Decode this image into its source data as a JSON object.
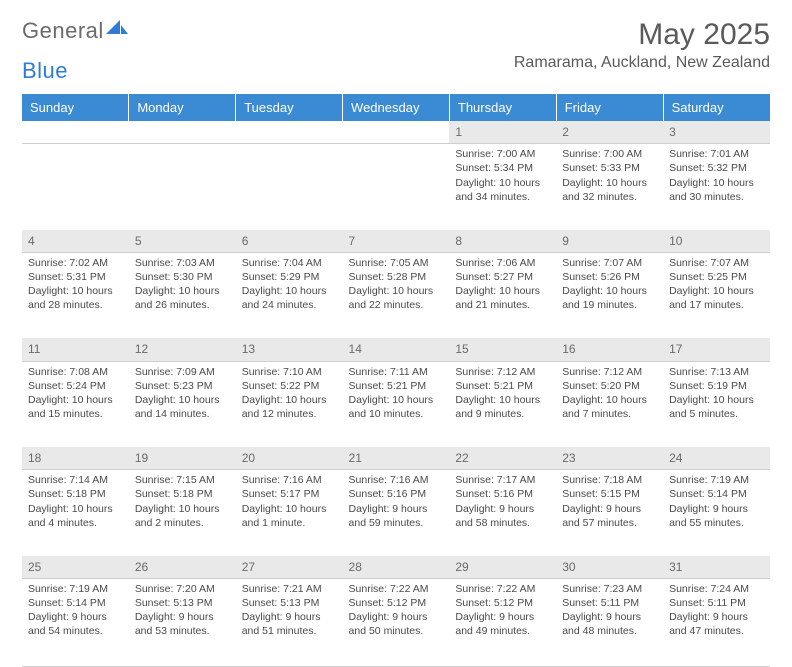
{
  "logo": {
    "text_general": "General",
    "text_blue": "Blue"
  },
  "header": {
    "month_title": "May 2025",
    "location": "Ramarama, Auckland, New Zealand"
  },
  "colors": {
    "header_bg": "#3b8bd4",
    "header_fg": "#ffffff",
    "daynum_bg": "#e9e9e9",
    "text": "#4a4a4a",
    "rule": "#cfcfcf",
    "title": "#5a5a5a",
    "logo_blue": "#2e7cd6"
  },
  "typography": {
    "title_pt": 30,
    "location_pt": 16,
    "weekday_pt": 13,
    "body_pt": 10.5,
    "daynum_pt": 12
  },
  "day_labels": [
    "Sunday",
    "Monday",
    "Tuesday",
    "Wednesday",
    "Thursday",
    "Friday",
    "Saturday"
  ],
  "weeks": [
    [
      null,
      null,
      null,
      null,
      {
        "n": "1",
        "sr": "7:00 AM",
        "ss": "5:34 PM",
        "dl": "Daylight: 10 hours and 34 minutes."
      },
      {
        "n": "2",
        "sr": "7:00 AM",
        "ss": "5:33 PM",
        "dl": "Daylight: 10 hours and 32 minutes."
      },
      {
        "n": "3",
        "sr": "7:01 AM",
        "ss": "5:32 PM",
        "dl": "Daylight: 10 hours and 30 minutes."
      }
    ],
    [
      {
        "n": "4",
        "sr": "7:02 AM",
        "ss": "5:31 PM",
        "dl": "Daylight: 10 hours and 28 minutes."
      },
      {
        "n": "5",
        "sr": "7:03 AM",
        "ss": "5:30 PM",
        "dl": "Daylight: 10 hours and 26 minutes."
      },
      {
        "n": "6",
        "sr": "7:04 AM",
        "ss": "5:29 PM",
        "dl": "Daylight: 10 hours and 24 minutes."
      },
      {
        "n": "7",
        "sr": "7:05 AM",
        "ss": "5:28 PM",
        "dl": "Daylight: 10 hours and 22 minutes."
      },
      {
        "n": "8",
        "sr": "7:06 AM",
        "ss": "5:27 PM",
        "dl": "Daylight: 10 hours and 21 minutes."
      },
      {
        "n": "9",
        "sr": "7:07 AM",
        "ss": "5:26 PM",
        "dl": "Daylight: 10 hours and 19 minutes."
      },
      {
        "n": "10",
        "sr": "7:07 AM",
        "ss": "5:25 PM",
        "dl": "Daylight: 10 hours and 17 minutes."
      }
    ],
    [
      {
        "n": "11",
        "sr": "7:08 AM",
        "ss": "5:24 PM",
        "dl": "Daylight: 10 hours and 15 minutes."
      },
      {
        "n": "12",
        "sr": "7:09 AM",
        "ss": "5:23 PM",
        "dl": "Daylight: 10 hours and 14 minutes."
      },
      {
        "n": "13",
        "sr": "7:10 AM",
        "ss": "5:22 PM",
        "dl": "Daylight: 10 hours and 12 minutes."
      },
      {
        "n": "14",
        "sr": "7:11 AM",
        "ss": "5:21 PM",
        "dl": "Daylight: 10 hours and 10 minutes."
      },
      {
        "n": "15",
        "sr": "7:12 AM",
        "ss": "5:21 PM",
        "dl": "Daylight: 10 hours and 9 minutes."
      },
      {
        "n": "16",
        "sr": "7:12 AM",
        "ss": "5:20 PM",
        "dl": "Daylight: 10 hours and 7 minutes."
      },
      {
        "n": "17",
        "sr": "7:13 AM",
        "ss": "5:19 PM",
        "dl": "Daylight: 10 hours and 5 minutes."
      }
    ],
    [
      {
        "n": "18",
        "sr": "7:14 AM",
        "ss": "5:18 PM",
        "dl": "Daylight: 10 hours and 4 minutes."
      },
      {
        "n": "19",
        "sr": "7:15 AM",
        "ss": "5:18 PM",
        "dl": "Daylight: 10 hours and 2 minutes."
      },
      {
        "n": "20",
        "sr": "7:16 AM",
        "ss": "5:17 PM",
        "dl": "Daylight: 10 hours and 1 minute."
      },
      {
        "n": "21",
        "sr": "7:16 AM",
        "ss": "5:16 PM",
        "dl": "Daylight: 9 hours and 59 minutes."
      },
      {
        "n": "22",
        "sr": "7:17 AM",
        "ss": "5:16 PM",
        "dl": "Daylight: 9 hours and 58 minutes."
      },
      {
        "n": "23",
        "sr": "7:18 AM",
        "ss": "5:15 PM",
        "dl": "Daylight: 9 hours and 57 minutes."
      },
      {
        "n": "24",
        "sr": "7:19 AM",
        "ss": "5:14 PM",
        "dl": "Daylight: 9 hours and 55 minutes."
      }
    ],
    [
      {
        "n": "25",
        "sr": "7:19 AM",
        "ss": "5:14 PM",
        "dl": "Daylight: 9 hours and 54 minutes."
      },
      {
        "n": "26",
        "sr": "7:20 AM",
        "ss": "5:13 PM",
        "dl": "Daylight: 9 hours and 53 minutes."
      },
      {
        "n": "27",
        "sr": "7:21 AM",
        "ss": "5:13 PM",
        "dl": "Daylight: 9 hours and 51 minutes."
      },
      {
        "n": "28",
        "sr": "7:22 AM",
        "ss": "5:12 PM",
        "dl": "Daylight: 9 hours and 50 minutes."
      },
      {
        "n": "29",
        "sr": "7:22 AM",
        "ss": "5:12 PM",
        "dl": "Daylight: 9 hours and 49 minutes."
      },
      {
        "n": "30",
        "sr": "7:23 AM",
        "ss": "5:11 PM",
        "dl": "Daylight: 9 hours and 48 minutes."
      },
      {
        "n": "31",
        "sr": "7:24 AM",
        "ss": "5:11 PM",
        "dl": "Daylight: 9 hours and 47 minutes."
      }
    ]
  ],
  "labels": {
    "sunrise_prefix": "Sunrise: ",
    "sunset_prefix": "Sunset: "
  }
}
